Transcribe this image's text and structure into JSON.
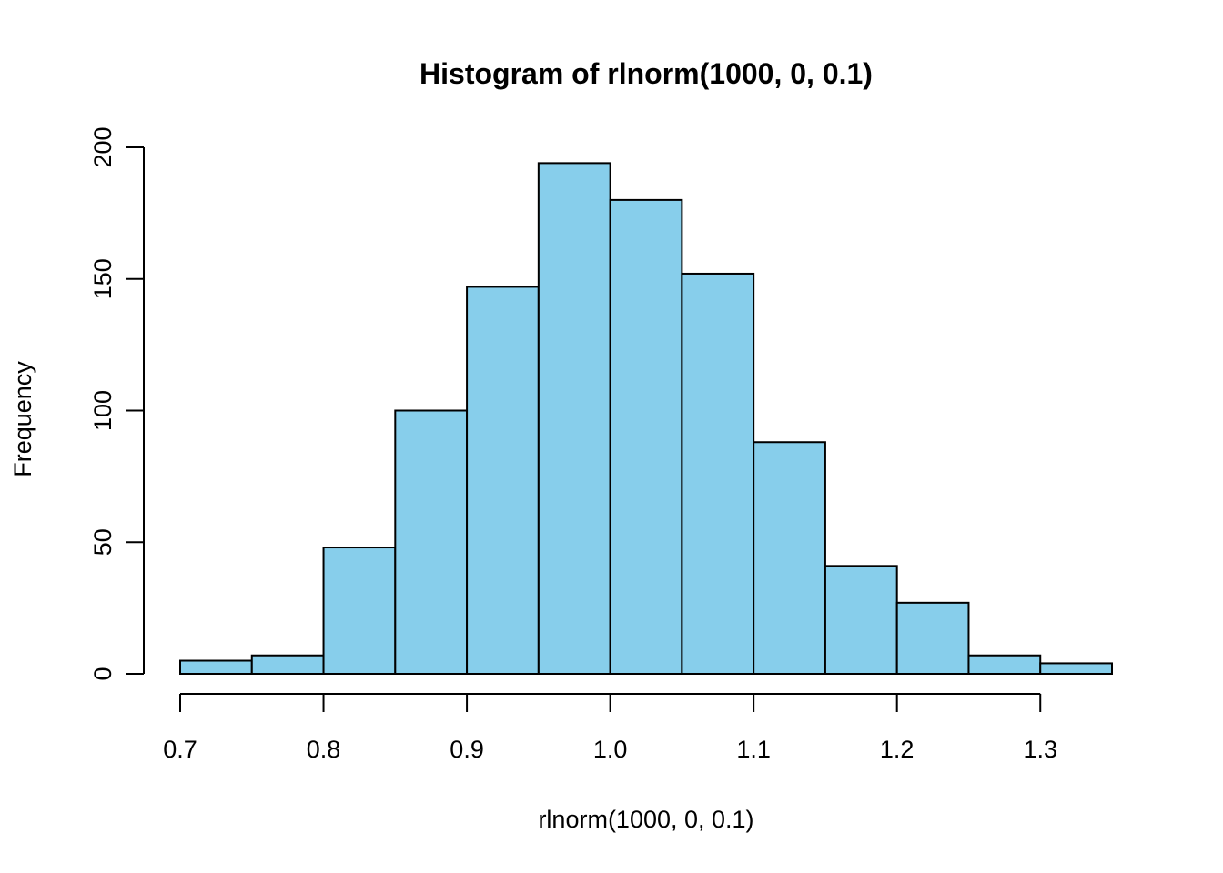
{
  "chart_data": {
    "type": "bar",
    "title": "Histogram of rlnorm(1000, 0, 0.1)",
    "xlabel": "rlnorm(1000, 0, 0.1)",
    "ylabel": "Frequency",
    "bins": [
      {
        "start": 0.7,
        "end": 0.75,
        "count": 5
      },
      {
        "start": 0.75,
        "end": 0.8,
        "count": 7
      },
      {
        "start": 0.8,
        "end": 0.85,
        "count": 48
      },
      {
        "start": 0.85,
        "end": 0.9,
        "count": 100
      },
      {
        "start": 0.9,
        "end": 0.95,
        "count": 147
      },
      {
        "start": 0.95,
        "end": 1.0,
        "count": 194
      },
      {
        "start": 1.0,
        "end": 1.05,
        "count": 180
      },
      {
        "start": 1.05,
        "end": 1.1,
        "count": 152
      },
      {
        "start": 1.1,
        "end": 1.15,
        "count": 88
      },
      {
        "start": 1.15,
        "end": 1.2,
        "count": 41
      },
      {
        "start": 1.2,
        "end": 1.25,
        "count": 27
      },
      {
        "start": 1.25,
        "end": 1.3,
        "count": 7
      },
      {
        "start": 1.3,
        "end": 1.35,
        "count": 4
      }
    ],
    "xlim": [
      0.7,
      1.35
    ],
    "ylim": [
      0,
      200
    ],
    "xticks": [
      "0.7",
      "0.8",
      "0.9",
      "1.0",
      "1.1",
      "1.2",
      "1.3"
    ],
    "yticks": [
      "0",
      "50",
      "100",
      "150",
      "200"
    ],
    "grid": false,
    "bar_color": "#87CEEB",
    "edge_color": "#000000"
  }
}
